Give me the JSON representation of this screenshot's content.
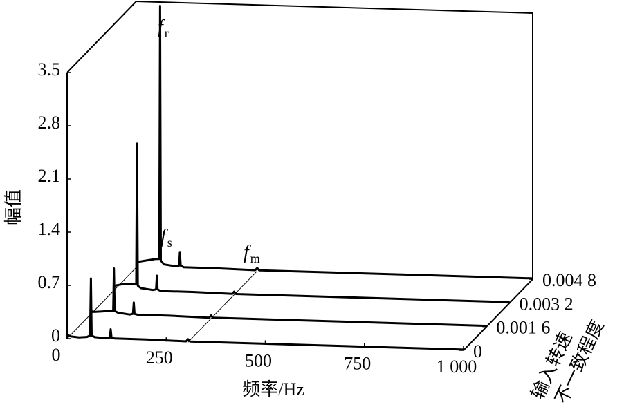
{
  "chart_data": {
    "type": "waterfall",
    "ylabel": "幅值",
    "xlabel": "频率/Hz",
    "zlabel": [
      "输入转速",
      "不一致程度"
    ],
    "x": [
      0,
      10,
      30,
      50,
      58,
      60,
      62,
      70,
      100,
      108,
      110,
      112,
      120,
      200,
      300,
      305,
      310,
      1000
    ],
    "xlim": [
      0,
      1000
    ],
    "xticks": [
      0,
      250,
      500,
      750,
      {
        "value": 1000,
        "label": "1 000"
      }
    ],
    "ylim": [
      0,
      3.5
    ],
    "yticks": [
      0,
      0.7,
      1.4,
      2.1,
      2.8,
      3.5
    ],
    "zlim": [
      0,
      0.0048
    ],
    "zticks": [
      0,
      {
        "value": 0.0016,
        "label": "0.001 6"
      },
      {
        "value": 0.0032,
        "label": "0.003 2"
      },
      {
        "value": 0.0048,
        "label": "0.004 8"
      }
    ],
    "series": [
      {
        "color": "#000000",
        "values": [
          0.05,
          0.03,
          0.02,
          0.03,
          0.05,
          0.8,
          0.05,
          0.03,
          0.02,
          0.03,
          0.14,
          0.03,
          0.02,
          0.02,
          0.01,
          0.04,
          0.01,
          0.01
        ]
      },
      {
        "color": "#000000",
        "values": [
          0.05,
          0.04,
          0.05,
          0.06,
          0.06,
          0.62,
          0.06,
          0.04,
          0.02,
          0.03,
          0.18,
          0.03,
          0.02,
          0.02,
          0.01,
          0.04,
          0.01,
          0.01
        ]
      },
      {
        "color": "#000000",
        "values": [
          0.06,
          0.08,
          0.1,
          0.1,
          0.1,
          1.95,
          0.08,
          0.05,
          0.03,
          0.04,
          0.22,
          0.04,
          0.02,
          0.02,
          0.01,
          0.04,
          0.01,
          0.01
        ]
      },
      {
        "color": "#000000",
        "values": [
          0.06,
          0.08,
          0.1,
          0.12,
          0.12,
          3.45,
          0.1,
          0.05,
          0.03,
          0.04,
          0.22,
          0.04,
          0.02,
          0.02,
          0.01,
          0.04,
          0.01,
          0.01
        ]
      }
    ],
    "annotations": [
      {
        "text": "f",
        "sub": "r"
      },
      {
        "text": "f",
        "sub": "s"
      },
      {
        "text": "f",
        "sub": "m"
      }
    ]
  }
}
